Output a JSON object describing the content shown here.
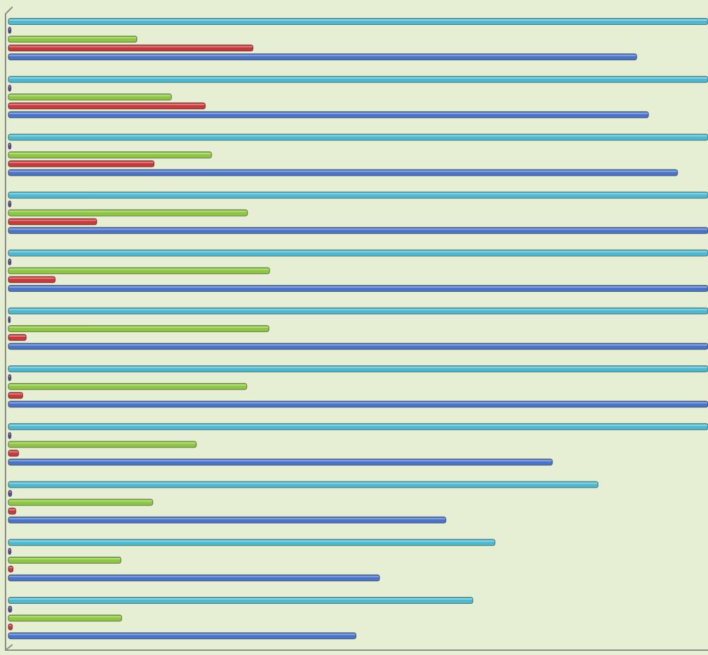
{
  "chart_data": {
    "type": "barh",
    "categories": [
      null,
      null,
      null,
      null,
      null,
      null,
      null,
      null,
      null,
      null,
      null
    ],
    "xlim": [
      0,
      1012
    ],
    "series": [
      {
        "color": "#4cb9d2",
        "values": [
          1012,
          1012,
          1012,
          1012,
          1012,
          1012,
          1012,
          1012,
          853,
          704,
          672
        ]
      },
      {
        "color": "#5e4a92",
        "values": [
          4,
          4,
          4,
          4,
          4,
          3,
          4,
          4,
          5,
          4,
          5
        ]
      },
      {
        "color": "#8dc63f",
        "values": [
          186,
          236,
          294,
          346,
          378,
          377,
          345,
          272,
          209,
          163,
          164
        ]
      },
      {
        "color": "#c9383b",
        "values": [
          354,
          285,
          211,
          128,
          68,
          26,
          21,
          15,
          11,
          7,
          6
        ]
      },
      {
        "color": "#4a74c9",
        "values": [
          909,
          926,
          968,
          1012,
          1012,
          1012,
          1012,
          787,
          633,
          537,
          503
        ]
      }
    ]
  }
}
